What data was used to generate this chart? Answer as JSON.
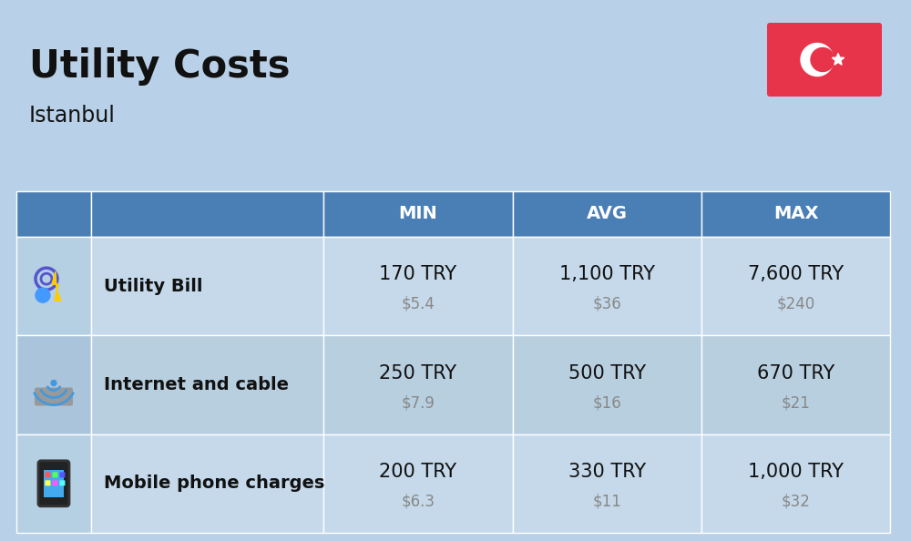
{
  "title": "Utility Costs",
  "subtitle": "Istanbul",
  "background_color": "#b8d0e8",
  "header_bg_color": "#4a7fb5",
  "header_text_color": "#ffffff",
  "row_bg_even": "#c5d9ea",
  "row_bg_odd": "#b8cfe0",
  "icon_col_bg_even": "#b8cfe0",
  "icon_col_bg_odd": "#adc7dc",
  "flag_bg": "#e8344a",
  "columns": [
    "MIN",
    "AVG",
    "MAX"
  ],
  "rows": [
    {
      "label": "Utility Bill",
      "min_try": "170 TRY",
      "min_usd": "$5.4",
      "avg_try": "1,100 TRY",
      "avg_usd": "$36",
      "max_try": "7,600 TRY",
      "max_usd": "$240"
    },
    {
      "label": "Internet and cable",
      "min_try": "250 TRY",
      "min_usd": "$7.9",
      "avg_try": "500 TRY",
      "avg_usd": "$16",
      "max_try": "670 TRY",
      "max_usd": "$21"
    },
    {
      "label": "Mobile phone charges",
      "min_try": "200 TRY",
      "min_usd": "$6.3",
      "avg_try": "330 TRY",
      "avg_usd": "$11",
      "max_try": "1,000 TRY",
      "max_usd": "$32"
    }
  ],
  "title_fontsize": 30,
  "subtitle_fontsize": 17,
  "header_fontsize": 14,
  "label_fontsize": 14,
  "value_fontsize": 15,
  "usd_fontsize": 12,
  "fig_width": 10.0,
  "fig_height": 5.94
}
